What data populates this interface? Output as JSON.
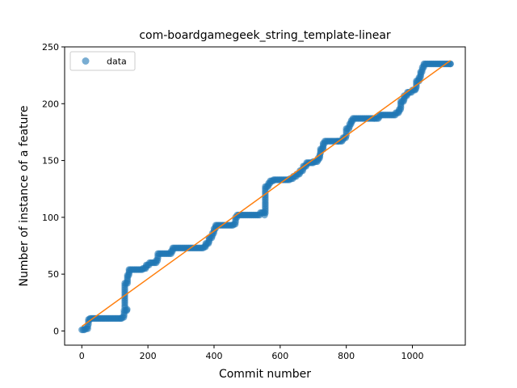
{
  "chart_data": {
    "type": "scatter",
    "title": "com-boardgamegeek_string_template-linear",
    "xlabel": "Commit number",
    "ylabel": "Number of instance of a feature",
    "xlim": [
      -52,
      1160
    ],
    "ylim": [
      -12.5,
      250
    ],
    "xticks": [
      0,
      200,
      400,
      600,
      800,
      1000
    ],
    "yticks": [
      0,
      50,
      100,
      150,
      200,
      250
    ],
    "legend": {
      "position": "top-left",
      "entries": [
        "data"
      ]
    },
    "colors": {
      "data": "#1f77b4",
      "fit": "#ff7f0e"
    },
    "grid": false,
    "fit_line": {
      "x": [
        0,
        1115
      ],
      "y": [
        4,
        238
      ]
    },
    "series": [
      {
        "name": "data",
        "steps": [
          [
            0,
            1
          ],
          [
            10,
            2
          ],
          [
            18,
            4
          ],
          [
            20,
            10
          ],
          [
            25,
            11
          ],
          [
            120,
            11
          ],
          [
            123,
            12
          ],
          [
            128,
            18
          ],
          [
            137,
            19
          ],
          [
            130,
            42
          ],
          [
            138,
            49
          ],
          [
            143,
            54
          ],
          [
            185,
            55
          ],
          [
            195,
            58
          ],
          [
            205,
            60
          ],
          [
            225,
            62
          ],
          [
            230,
            68
          ],
          [
            270,
            70
          ],
          [
            275,
            73
          ],
          [
            370,
            74
          ],
          [
            375,
            77
          ],
          [
            385,
            82
          ],
          [
            395,
            86
          ],
          [
            400,
            90
          ],
          [
            405,
            93
          ],
          [
            460,
            94
          ],
          [
            465,
            100
          ],
          [
            470,
            102
          ],
          [
            540,
            104
          ],
          [
            553,
            102
          ],
          [
            555,
            127
          ],
          [
            565,
            130
          ],
          [
            570,
            132
          ],
          [
            580,
            133
          ],
          [
            630,
            134
          ],
          [
            640,
            136
          ],
          [
            650,
            138
          ],
          [
            660,
            141
          ],
          [
            670,
            145
          ],
          [
            680,
            148
          ],
          [
            700,
            149
          ],
          [
            715,
            152
          ],
          [
            720,
            155
          ],
          [
            722,
            160
          ],
          [
            730,
            165
          ],
          [
            735,
            167
          ],
          [
            775,
            167
          ],
          [
            790,
            170
          ],
          [
            800,
            178
          ],
          [
            810,
            182
          ],
          [
            815,
            185
          ],
          [
            820,
            187
          ],
          [
            885,
            187
          ],
          [
            900,
            190
          ],
          [
            950,
            192
          ],
          [
            960,
            195
          ],
          [
            965,
            202
          ],
          [
            975,
            207
          ],
          [
            985,
            210
          ],
          [
            1000,
            212
          ],
          [
            1010,
            213
          ],
          [
            1012,
            220
          ],
          [
            1020,
            223
          ],
          [
            1025,
            228
          ],
          [
            1030,
            232
          ],
          [
            1035,
            235
          ],
          [
            1115,
            235
          ]
        ]
      }
    ]
  }
}
